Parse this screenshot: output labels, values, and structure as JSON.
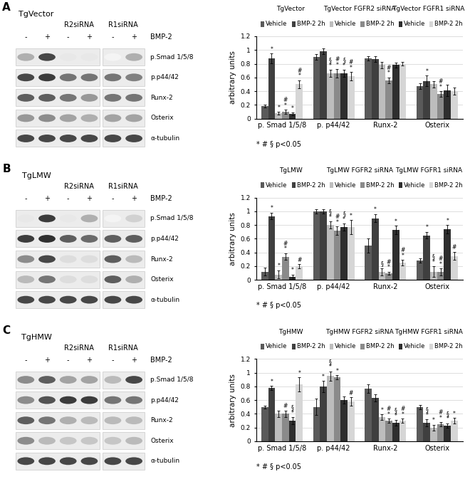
{
  "chart_data": [
    {
      "type": "bar",
      "ylabel": "arbitrary units",
      "note": "* # § p<0.05",
      "categories": [
        "p. Smad 1/5/8",
        "p. p44/42",
        "Runx-2",
        "Osterix"
      ],
      "ylim": [
        0,
        1.2
      ],
      "yticks": [
        0,
        0.2,
        0.4,
        0.6,
        0.8,
        1,
        1.2
      ],
      "groups": [
        {
          "title": "TgVector",
          "series": [
            {
              "name": "Vehicle",
              "color": "#5a5a5a",
              "values": [
                0.18,
                0.9,
                0.88,
                0.47
              ],
              "errors": [
                0.02,
                0.04,
                0.03,
                0.04
              ],
              "significance": [
                null,
                null,
                null,
                null
              ]
            },
            {
              "name": "BMP-2 2h",
              "color": "#3f3f3f",
              "values": [
                0.88,
                0.98,
                0.87,
                0.55
              ],
              "errors": [
                0.07,
                0.04,
                0.04,
                0.08
              ],
              "significance": [
                "*",
                null,
                null,
                "*"
              ]
            }
          ]
        },
        {
          "title": "TgVector FGFR2 siRNA",
          "series": [
            {
              "name": "Vehicle",
              "color": "#bdbdbd",
              "values": [
                0.08,
                0.66,
                0.78,
                0.5
              ],
              "errors": [
                0.02,
                0.05,
                0.05,
                0.05
              ],
              "significance": [
                "*",
                "§*",
                null,
                null
              ]
            },
            {
              "name": "BMP-2 2h",
              "color": "#8a8a8a",
              "values": [
                0.1,
                0.66,
                0.56,
                0.36
              ],
              "errors": [
                0.03,
                0.06,
                0.04,
                0.04
              ],
              "significance": [
                "#*",
                "#*",
                "#*",
                "#*"
              ]
            }
          ]
        },
        {
          "title": "TgVector FGFR1 siRNA",
          "series": [
            {
              "name": "Vehicle",
              "color": "#2e2e2e",
              "values": [
                0.07,
                0.66,
                0.78,
                0.41
              ],
              "errors": [
                0.02,
                0.05,
                0.04,
                0.08
              ],
              "significance": [
                "*",
                "§*",
                null,
                null
              ]
            },
            {
              "name": "BMP-2 2h",
              "color": "#d6d6d6",
              "values": [
                0.5,
                0.62,
                0.8,
                0.4
              ],
              "errors": [
                0.06,
                0.06,
                0.03,
                0.05
              ],
              "significance": [
                "#*",
                "#*",
                null,
                null
              ]
            }
          ]
        }
      ]
    },
    {
      "type": "bar",
      "ylabel": "arbitrary units",
      "note": "* # § p<0.05",
      "categories": [
        "p. Smad 1/5/8",
        "p. p44/42",
        "Runx-2",
        "Osterix"
      ],
      "ylim": [
        0,
        1.2
      ],
      "yticks": [
        0,
        0.2,
        0.4,
        0.6,
        0.8,
        1,
        1.2
      ],
      "groups": [
        {
          "title": "TgLMW",
          "series": [
            {
              "name": "Vehicle",
              "color": "#5a5a5a",
              "values": [
                0.12,
                1.0,
                0.5,
                0.28
              ],
              "errors": [
                0.06,
                0.03,
                0.1,
                0.03
              ],
              "significance": [
                null,
                null,
                null,
                null
              ]
            },
            {
              "name": "BMP-2 2h",
              "color": "#3f3f3f",
              "values": [
                0.93,
                1.0,
                0.9,
                0.65
              ],
              "errors": [
                0.05,
                0.03,
                0.06,
                0.05
              ],
              "significance": [
                "*",
                null,
                "*",
                "*"
              ]
            }
          ]
        },
        {
          "title": "TgLMW FGFR2 siRNA",
          "series": [
            {
              "name": "Vehicle",
              "color": "#bdbdbd",
              "values": [
                0.08,
                0.8,
                0.12,
                0.12
              ],
              "errors": [
                0.06,
                0.05,
                0.05,
                0.08
              ],
              "significance": [
                "*",
                "§*",
                "§",
                "§*"
              ]
            },
            {
              "name": "BMP-2 2h",
              "color": "#8a8a8a",
              "values": [
                0.34,
                0.72,
                0.1,
                0.12
              ],
              "errors": [
                0.05,
                0.06,
                0.02,
                0.05
              ],
              "significance": [
                "#*",
                "#*",
                "#*",
                "#*"
              ]
            }
          ]
        },
        {
          "title": "TgLMW FGFR1 siRNA",
          "series": [
            {
              "name": "Vehicle",
              "color": "#2e2e2e",
              "values": [
                0.04,
                0.77,
                0.73,
                0.74
              ],
              "errors": [
                0.04,
                0.05,
                0.06,
                0.06
              ],
              "significance": [
                "*",
                "§*",
                "*",
                "*"
              ]
            },
            {
              "name": "BMP-2 2h",
              "color": "#d6d6d6",
              "values": [
                0.2,
                0.77,
                0.25,
                0.35
              ],
              "errors": [
                0.03,
                0.1,
                0.04,
                0.06
              ],
              "significance": [
                "#",
                "*",
                "#*",
                "#"
              ]
            }
          ]
        }
      ]
    },
    {
      "type": "bar",
      "ylabel": "arbitrary units",
      "note": "* # § p<0.05",
      "categories": [
        "p. Smad 1/5/8",
        "p. p44/42",
        "Runx-2",
        "Osterix"
      ],
      "ylim": [
        0,
        1.2
      ],
      "yticks": [
        0,
        0.2,
        0.4,
        0.6,
        0.8,
        1,
        1.2
      ],
      "groups": [
        {
          "title": "TgHMW",
          "series": [
            {
              "name": "Vehicle",
              "color": "#5a5a5a",
              "values": [
                0.5,
                0.5,
                0.77,
                0.5
              ],
              "errors": [
                0.02,
                0.12,
                0.06,
                0.03
              ],
              "significance": [
                null,
                null,
                null,
                null
              ]
            },
            {
              "name": "BMP-2 2h",
              "color": "#3f3f3f",
              "values": [
                0.78,
                0.8,
                0.63,
                0.27
              ],
              "errors": [
                0.03,
                0.08,
                0.05,
                0.05
              ],
              "significance": [
                "*",
                "*",
                null,
                "§*"
              ]
            }
          ]
        },
        {
          "title": "TgHMW FGFR2 siRNA",
          "series": [
            {
              "name": "Vehicle",
              "color": "#bdbdbd",
              "values": [
                0.4,
                0.95,
                0.35,
                0.2
              ],
              "errors": [
                0.05,
                0.07,
                0.04,
                0.04
              ],
              "significance": [
                null,
                "§*",
                "*",
                "*"
              ]
            },
            {
              "name": "BMP-2 2h",
              "color": "#8a8a8a",
              "values": [
                0.4,
                0.93,
                0.3,
                0.25
              ],
              "errors": [
                0.05,
                0.03,
                0.03,
                0.03
              ],
              "significance": [
                "#",
                "*",
                "#*",
                "#*"
              ]
            }
          ]
        },
        {
          "title": "TgHMW FGFR1 siRNA",
          "series": [
            {
              "name": "Vehicle",
              "color": "#2e2e2e",
              "values": [
                0.3,
                0.6,
                0.27,
                0.23
              ],
              "errors": [
                0.05,
                0.05,
                0.04,
                0.03
              ],
              "significance": [
                "§*",
                null,
                "§*",
                "§*"
              ]
            },
            {
              "name": "BMP-2 2h",
              "color": "#d6d6d6",
              "values": [
                0.83,
                0.58,
                0.3,
                0.3
              ],
              "errors": [
                0.1,
                0.06,
                0.03,
                0.04
              ],
              "significance": [
                "*",
                "#",
                "#*",
                "*"
              ]
            }
          ]
        }
      ]
    }
  ],
  "panels": [
    {
      "letter": "A",
      "blot": {
        "title": "TgVector",
        "treatment": "BMP-2",
        "lane_signs": [
          "-",
          "+",
          "-",
          "+",
          "-",
          "+"
        ],
        "lane_groups": [
          null,
          null,
          "R2siRNA",
          "R2siRNA",
          "R1siRNA",
          "R1siRNA"
        ],
        "rows": [
          {
            "label": "p.Smad 1/5/8",
            "intensity": [
              0.35,
              0.8,
              0.1,
              0.1,
              0.05,
              0.35
            ]
          },
          {
            "label": "p.p44/42",
            "intensity": [
              0.8,
              0.85,
              0.6,
              0.6,
              0.6,
              0.55
            ]
          },
          {
            "label": "Runx-2",
            "intensity": [
              0.7,
              0.7,
              0.6,
              0.45,
              0.6,
              0.6
            ]
          },
          {
            "label": "Osterix",
            "intensity": [
              0.45,
              0.5,
              0.4,
              0.35,
              0.4,
              0.4
            ]
          },
          {
            "label": "α-tubulin",
            "intensity": [
              0.8,
              0.8,
              0.8,
              0.8,
              0.8,
              0.8
            ]
          }
        ]
      }
    },
    {
      "letter": "B",
      "blot": {
        "title": "TgLMW",
        "treatment": "BMP-2",
        "lane_signs": [
          "-",
          "+",
          "-",
          "+",
          "-",
          "+"
        ],
        "lane_groups": [
          null,
          null,
          "R2siRNA",
          "R2siRNA",
          "R1siRNA",
          "R1siRNA"
        ],
        "rows": [
          {
            "label": "p.Smad 1/5/8",
            "intensity": [
              0.1,
              0.85,
              0.1,
              0.35,
              0.05,
              0.2
            ]
          },
          {
            "label": "p.p44/42",
            "intensity": [
              0.85,
              0.9,
              0.7,
              0.65,
              0.7,
              0.7
            ]
          },
          {
            "label": "Runx-2",
            "intensity": [
              0.5,
              0.8,
              0.15,
              0.15,
              0.7,
              0.3
            ]
          },
          {
            "label": "Osterix",
            "intensity": [
              0.3,
              0.6,
              0.15,
              0.15,
              0.7,
              0.35
            ]
          },
          {
            "label": "α-tubulin",
            "intensity": [
              0.8,
              0.8,
              0.8,
              0.8,
              0.8,
              0.8
            ]
          }
        ]
      }
    },
    {
      "letter": "C",
      "blot": {
        "title": "TgHMW",
        "treatment": "BMP-2",
        "lane_signs": [
          "-",
          "+",
          "-",
          "+",
          "-",
          "+"
        ],
        "lane_groups": [
          null,
          null,
          "R2siRNA",
          "R2siRNA",
          "R1siRNA",
          "R1siRNA"
        ],
        "rows": [
          {
            "label": "p.Smad 1/5/8",
            "intensity": [
              0.5,
              0.7,
              0.4,
              0.4,
              0.3,
              0.8
            ]
          },
          {
            "label": "p.p44/42",
            "intensity": [
              0.5,
              0.75,
              0.85,
              0.85,
              0.6,
              0.6
            ]
          },
          {
            "label": "Runx-2",
            "intensity": [
              0.7,
              0.6,
              0.35,
              0.3,
              0.3,
              0.3
            ]
          },
          {
            "label": "Osterix",
            "intensity": [
              0.5,
              0.3,
              0.25,
              0.25,
              0.25,
              0.3
            ]
          },
          {
            "label": "α-tubulin",
            "intensity": [
              0.8,
              0.8,
              0.8,
              0.8,
              0.8,
              0.8
            ]
          }
        ]
      }
    }
  ]
}
